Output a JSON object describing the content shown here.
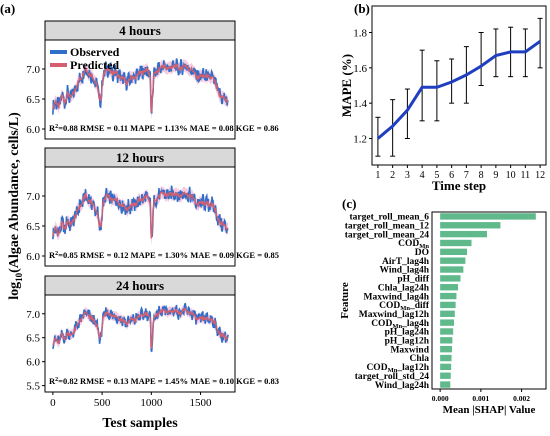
{
  "panel_labels": {
    "a": "(a)",
    "b": "(b)",
    "c": "(c)"
  },
  "chart_data": [
    {
      "type": "line",
      "panel": "a",
      "ylabel": "log",
      "ylabel_sub": "10",
      "ylabel_rest": "(Algae Abundance, cells/L)",
      "xlabel": "Test samples",
      "x_ticks": [
        0,
        500,
        1000,
        1500
      ],
      "x_range": [
        -80,
        1850
      ],
      "legend": {
        "observed": "Observed",
        "predicted": "Predicted"
      },
      "series_colors": {
        "observed": "#2f6fc9",
        "predicted": "#d65f6f",
        "band": "#f6c3dc"
      },
      "subplots": [
        {
          "title": "4 hours",
          "yticks": [
            6.0,
            6.5,
            7.0
          ],
          "ylim": [
            5.9,
            7.45
          ],
          "metrics": {
            "r2": "=0.88",
            "rmse": "RMSE = 0.11",
            "mape": "MAPE = 1.13%",
            "mae": "MAE = 0.08",
            "kge": "KGE = 0.86"
          }
        },
        {
          "title": "12 hours",
          "yticks": [
            6.0,
            6.5,
            7.0
          ],
          "ylim": [
            5.9,
            7.45
          ],
          "metrics": {
            "r2": "=0.85",
            "rmse": "RMSE = 0.12",
            "mape": "MAPE = 1.30%",
            "mae": "MAE = 0.09",
            "kge": "KGE = 0.85"
          }
        },
        {
          "title": "24 hours",
          "yticks": [
            5.5,
            6.0,
            6.5,
            7.0
          ],
          "ylim": [
            5.45,
            7.35
          ],
          "metrics": {
            "r2": "=0.82",
            "rmse": "RMSE = 0.13",
            "mape": "MAPE = 1.45%",
            "mae": "MAE = 0.10",
            "kge": "KGE = 0.83"
          }
        }
      ],
      "r2_label": "R",
      "r2_sup": "2",
      "shape": [
        [
          0,
          6.35
        ],
        [
          30,
          6.45
        ],
        [
          60,
          6.38
        ],
        [
          90,
          6.55
        ],
        [
          120,
          6.45
        ],
        [
          150,
          6.6
        ],
        [
          180,
          6.5
        ],
        [
          210,
          6.62
        ],
        [
          240,
          6.7
        ],
        [
          270,
          6.82
        ],
        [
          300,
          6.9
        ],
        [
          330,
          7.0
        ],
        [
          360,
          6.95
        ],
        [
          390,
          6.9
        ],
        [
          420,
          6.8
        ],
        [
          450,
          6.75
        ],
        [
          470,
          6.5
        ],
        [
          490,
          6.48
        ],
        [
          510,
          6.9
        ],
        [
          540,
          7.0
        ],
        [
          570,
          6.97
        ],
        [
          600,
          6.95
        ],
        [
          650,
          6.92
        ],
        [
          700,
          6.85
        ],
        [
          750,
          6.78
        ],
        [
          800,
          6.85
        ],
        [
          850,
          6.88
        ],
        [
          900,
          6.95
        ],
        [
          950,
          6.98
        ],
        [
          990,
          6.9
        ],
        [
          1000,
          6.2
        ],
        [
          1010,
          6.5
        ],
        [
          1030,
          6.92
        ],
        [
          1080,
          7.0
        ],
        [
          1130,
          7.05
        ],
        [
          1180,
          7.0
        ],
        [
          1230,
          7.06
        ],
        [
          1280,
          7.0
        ],
        [
          1330,
          7.05
        ],
        [
          1380,
          7.02
        ],
        [
          1430,
          6.95
        ],
        [
          1480,
          6.85
        ],
        [
          1530,
          6.9
        ],
        [
          1580,
          6.85
        ],
        [
          1620,
          6.88
        ],
        [
          1660,
          6.7
        ],
        [
          1700,
          6.55
        ],
        [
          1740,
          6.5
        ],
        [
          1780,
          6.48
        ]
      ]
    },
    {
      "type": "line",
      "panel": "b",
      "xlabel": "Time step",
      "ylabel": "MAPE (%)",
      "x": [
        1,
        2,
        3,
        4,
        5,
        6,
        7,
        8,
        9,
        10,
        11,
        12
      ],
      "y": [
        1.2,
        1.27,
        1.36,
        1.49,
        1.49,
        1.52,
        1.56,
        1.61,
        1.67,
        1.69,
        1.69,
        1.75
      ],
      "yerr_low": [
        1.1,
        1.1,
        1.2,
        1.3,
        1.3,
        1.4,
        1.4,
        1.5,
        1.55,
        1.55,
        1.55,
        1.6
      ],
      "yerr_high": [
        1.32,
        1.42,
        1.48,
        1.7,
        1.64,
        1.65,
        1.72,
        1.8,
        1.82,
        1.83,
        1.82,
        1.88
      ],
      "yticks": [
        1.2,
        1.4,
        1.6,
        1.8
      ],
      "ylim": [
        1.05,
        1.95
      ],
      "xlim": [
        0.6,
        12.4
      ],
      "color": "#1f3fc0"
    },
    {
      "type": "bar",
      "panel": "c",
      "orientation": "horizontal",
      "xlabel": "Mean |SHAP| Value",
      "ylabel": "Feature",
      "xticks": [
        0.0,
        0.001,
        0.002
      ],
      "xtick_labels": [
        "0.000",
        "0.001",
        "0.002"
      ],
      "xlim": [
        -0.0002,
        0.0026
      ],
      "color": "#5fb98b",
      "features": [
        {
          "label": "target_roll_mean_6",
          "sub": "",
          "tail": "",
          "value": 0.00235
        },
        {
          "label": "target_roll_mean_12",
          "sub": "",
          "tail": "",
          "value": 0.00148
        },
        {
          "label": "target_roll_mean_24",
          "sub": "",
          "tail": "",
          "value": 0.00115
        },
        {
          "label": "COD",
          "sub": "Mn",
          "tail": "",
          "value": 0.00077
        },
        {
          "label": "DO",
          "sub": "",
          "tail": "",
          "value": 0.00066
        },
        {
          "label": "AirT_lag4h",
          "sub": "",
          "tail": "",
          "value": 0.00062
        },
        {
          "label": "Wind_lag4h",
          "sub": "",
          "tail": "",
          "value": 0.00057
        },
        {
          "label": "pH_diff",
          "sub": "",
          "tail": "",
          "value": 0.0005
        },
        {
          "label": "Chla_lag24h",
          "sub": "",
          "tail": "",
          "value": 0.00044
        },
        {
          "label": "Maxwind_lag4h",
          "sub": "",
          "tail": "",
          "value": 0.0004
        },
        {
          "label": "COD",
          "sub": "Mn",
          "tail": "_diff",
          "value": 0.00038
        },
        {
          "label": "Maxwind_lag12h",
          "sub": "",
          "tail": "",
          "value": 0.00036
        },
        {
          "label": "COD",
          "sub": "Mn",
          "tail": "_lag4h",
          "value": 0.00034
        },
        {
          "label": "pH_lag24h",
          "sub": "",
          "tail": "",
          "value": 0.00032
        },
        {
          "label": "pH_lag12h",
          "sub": "",
          "tail": "",
          "value": 0.0003
        },
        {
          "label": "Maxwind",
          "sub": "",
          "tail": "",
          "value": 0.00029
        },
        {
          "label": "Chla",
          "sub": "",
          "tail": "",
          "value": 0.00028
        },
        {
          "label": "COD",
          "sub": "Mn",
          "tail": "_lag12h",
          "value": 0.00027
        },
        {
          "label": "target_roll_std_24",
          "sub": "",
          "tail": "",
          "value": 0.00026
        },
        {
          "label": "Wind_lag24h",
          "sub": "",
          "tail": "",
          "value": 0.00025
        }
      ]
    }
  ]
}
